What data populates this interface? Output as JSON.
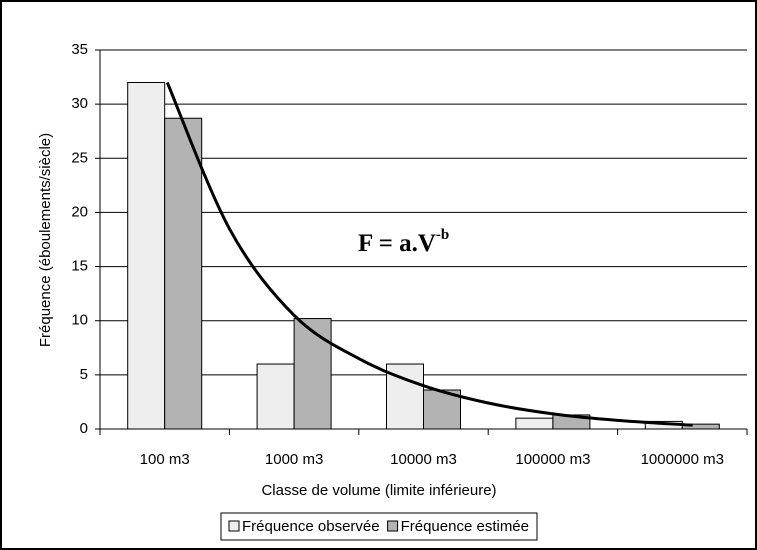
{
  "chart_data": {
    "type": "bar",
    "x_label": "Classe de volume (limite inférieure)",
    "y_label": "Fréquence (éboulements/siècle)",
    "categories": [
      "100 m3",
      "1000 m3",
      "10000 m3",
      "100000 m3",
      "1000000 m3"
    ],
    "series": [
      {
        "name": "Fréquence observée",
        "color": "#eeeeee",
        "values": [
          32,
          6,
          6,
          1,
          0.7
        ]
      },
      {
        "name": "Fréquence estimée",
        "color": "#b3b3b3",
        "values": [
          28.7,
          10.2,
          3.6,
          1.3,
          0.45
        ]
      }
    ],
    "curve": {
      "color": "#000000",
      "x": [
        0.02,
        0.5,
        1,
        1.5,
        2,
        2.5,
        3,
        3.5,
        4.08
      ],
      "values": [
        32,
        18.5,
        10.5,
        6.5,
        4,
        2.4,
        1.4,
        0.8,
        0.35
      ]
    },
    "annotation": {
      "text": "F = a.V",
      "superscript": "-b"
    },
    "ylim": [
      0,
      35
    ],
    "yticks": [
      0,
      5,
      10,
      15,
      20,
      25,
      30,
      35
    ],
    "grid": true,
    "legend": "bottom"
  }
}
